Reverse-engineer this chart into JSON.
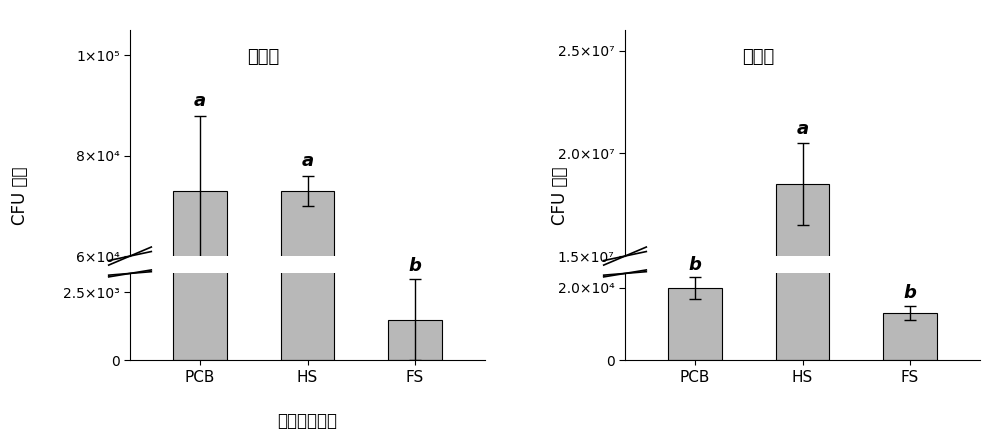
{
  "left": {
    "title": "尾矿土",
    "categories": [
      "PCB",
      "HS",
      "FS"
    ],
    "values": [
      73000,
      73000,
      1500
    ],
    "errors": [
      15000,
      3000,
      1500
    ],
    "labels": [
      "a",
      "a",
      "b"
    ],
    "bar_color": "#b8b8b8",
    "ylabel": "CFU 计数",
    "xlabel": "不同筛选方法",
    "upper_ylim": [
      60000,
      105000
    ],
    "lower_ylim": [
      0,
      3200
    ],
    "upper_yticks": [
      60000,
      80000,
      100000
    ],
    "lower_yticks": [
      0,
      2500
    ],
    "upper_ytick_labels": [
      "6×10⁴",
      "8×10⁴",
      "1×10⁵"
    ],
    "lower_ytick_labels": [
      "0",
      "2.5×10³"
    ]
  },
  "right": {
    "title": "草坪土",
    "categories": [
      "PCB",
      "HS",
      "FS"
    ],
    "values": [
      20000,
      18500000,
      13000
    ],
    "errors": [
      3000,
      2000000,
      2000
    ],
    "labels": [
      "b",
      "a",
      "b"
    ],
    "bar_color": "#b8b8b8",
    "ylabel": "CFU 计数",
    "xlabel": "",
    "upper_ylim": [
      15000000,
      26000000
    ],
    "lower_ylim": [
      0,
      24000
    ],
    "upper_yticks": [
      15000000,
      20000000,
      25000000
    ],
    "lower_yticks": [
      0,
      20000
    ],
    "upper_ytick_labels": [
      "1.5×10⁷",
      "2.0×10⁷",
      "2.5×10⁷"
    ],
    "lower_ytick_labels": [
      "0",
      "2.0×10⁴"
    ]
  }
}
